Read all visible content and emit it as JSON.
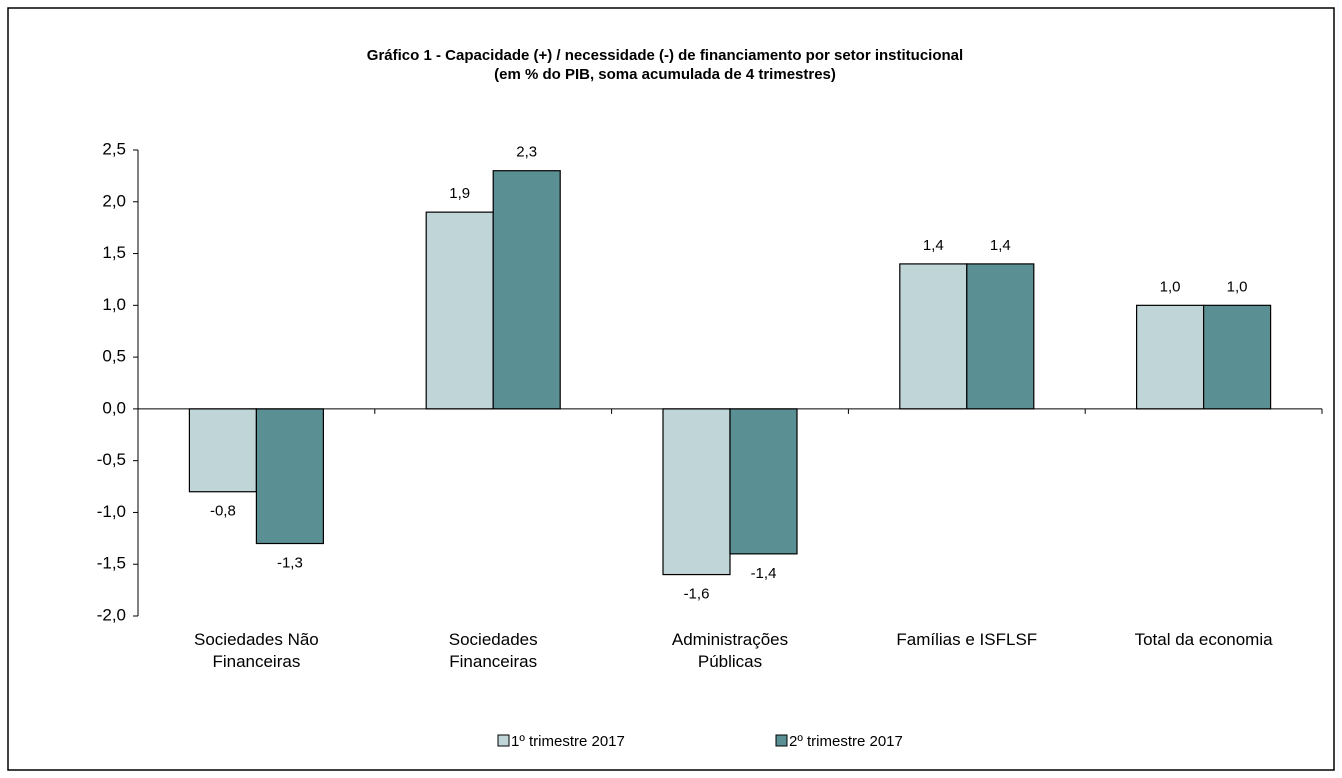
{
  "chart_data": {
    "type": "bar",
    "title": "Gráfico 1 - Capacidade (+) / necessidade (-) de financiamento por setor institucional",
    "subtitle": "(em % do PIB, soma acumulada de 4  trimestres)",
    "categories": [
      "Sociedades Não Financeiras",
      "Sociedades Financeiras",
      "Administrações Públicas",
      "Famílias e ISFLSF",
      "Total da economia"
    ],
    "series": [
      {
        "name": "1º trimestre 2017",
        "color": "#c0d5d8",
        "values": [
          -0.8,
          1.9,
          -1.6,
          1.4,
          1.0
        ],
        "value_labels": [
          "-0,8",
          "1,9",
          "-1,6",
          "1,4",
          "1,0"
        ]
      },
      {
        "name": "2º trimestre 2017",
        "color": "#5a8f93",
        "values": [
          -1.3,
          2.3,
          -1.4,
          1.4,
          1.0
        ],
        "value_labels": [
          "-1,3",
          "2,3",
          "-1,4",
          "1,4",
          "1,0"
        ]
      }
    ],
    "ylim": [
      -2.0,
      2.5
    ],
    "yticks": [
      {
        "value": -2.0,
        "label": "-2,0"
      },
      {
        "value": -1.5,
        "label": "-1,5"
      },
      {
        "value": -1.0,
        "label": "-1,0"
      },
      {
        "value": -0.5,
        "label": "-0,5"
      },
      {
        "value": 0.0,
        "label": "0,0"
      },
      {
        "value": 0.5,
        "label": "0,5"
      },
      {
        "value": 1.0,
        "label": "1,0"
      },
      {
        "value": 1.5,
        "label": "1,5"
      },
      {
        "value": 2.0,
        "label": "2,0"
      },
      {
        "value": 2.5,
        "label": "2,5"
      }
    ],
    "grid": false,
    "legend": "bottom"
  }
}
